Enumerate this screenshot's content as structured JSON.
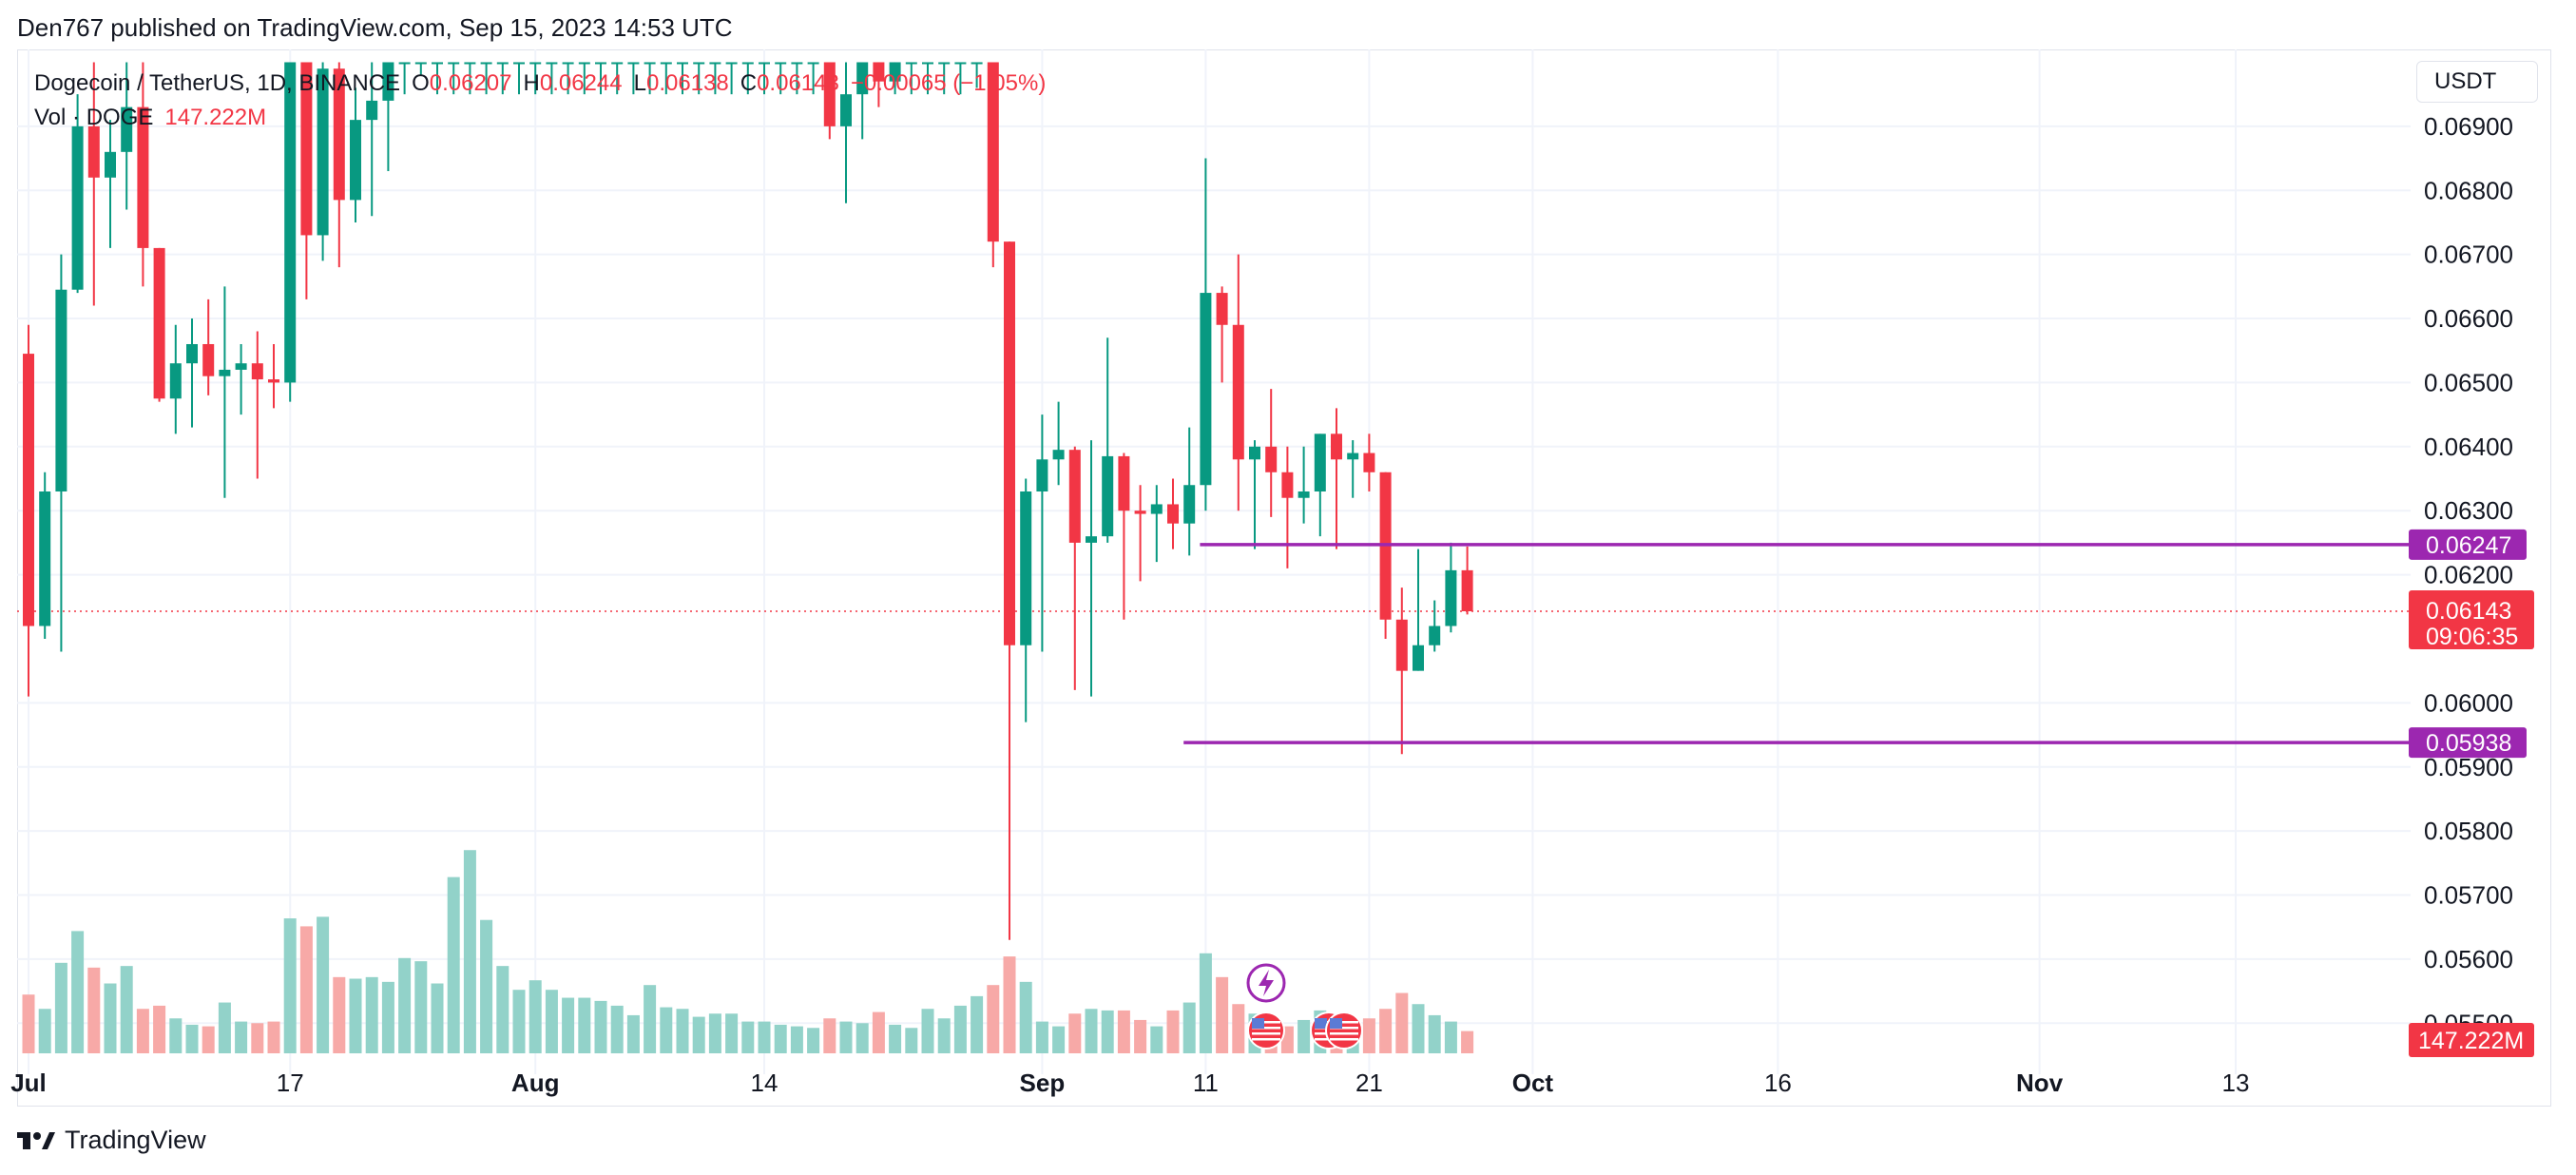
{
  "header": {
    "published_by": "Den767 published on TradingView.com, Sep 15, 2023 14:53 UTC"
  },
  "legend": {
    "symbol": "Dogecoin / TetherUS, 1D, BINANCE",
    "o_label": "O",
    "o_value": "0.06207",
    "h_label": "H",
    "h_value": "0.06244",
    "l_label": "L",
    "l_value": "0.06138",
    "c_label": "C",
    "c_value": "0.06143",
    "change": "−0.00065 (−1.05%)",
    "vol_label": "Vol · DOGE",
    "vol_value": "147.222M"
  },
  "price_axis": {
    "currency": "USDT",
    "ticks": [
      "0.06900",
      "0.06800",
      "0.06700",
      "0.06600",
      "0.06500",
      "0.06400",
      "0.06300",
      "0.06200",
      "0.06000",
      "0.05900",
      "0.05800",
      "0.05700",
      "0.05600",
      "0.05500"
    ],
    "tick_values": [
      0.069,
      0.068,
      0.067,
      0.066,
      0.065,
      0.064,
      0.063,
      0.062,
      0.06,
      0.059,
      0.058,
      0.057,
      0.056,
      0.055
    ],
    "current_price": "0.06143",
    "current_value": 0.06143,
    "countdown": "09:06:35",
    "volume_label": "147.222M"
  },
  "time_axis": {
    "labels": [
      "Jul",
      "17",
      "Aug",
      "14",
      "Sep",
      "11",
      "21",
      "Oct",
      "16",
      "Nov",
      "13"
    ],
    "label_day_index": [
      0,
      16,
      31,
      45,
      62,
      72,
      82,
      92,
      107,
      123,
      135
    ]
  },
  "horizontal_lines": [
    {
      "label": "0.06247",
      "value": 0.06247,
      "start_day": 72
    },
    {
      "label": "0.05938",
      "value": 0.05938,
      "start_day": 71
    }
  ],
  "colors": {
    "up": "#089981",
    "down": "#f23645",
    "vol_up": "#92d2c9",
    "vol_down": "#f7a9a7",
    "level": "#9c27b0",
    "grid": "#f0f3fa"
  },
  "chart_data": {
    "type": "candlestick",
    "symbol": "Dogecoin / TetherUS",
    "interval": "1D",
    "exchange": "BINANCE",
    "x_start": "2023-06-30",
    "ylim": [
      0.0545,
      0.0702
    ],
    "ohlc": [
      {
        "o": 0.06545,
        "h": 0.0659,
        "l": 0.0601,
        "c": 0.0612,
        "v": 37
      },
      {
        "o": 0.0612,
        "h": 0.0636,
        "l": 0.061,
        "c": 0.0633,
        "v": 28
      },
      {
        "o": 0.0633,
        "h": 0.067,
        "l": 0.0608,
        "c": 0.06645,
        "v": 57
      },
      {
        "o": 0.06645,
        "h": 0.0695,
        "l": 0.0664,
        "c": 0.069,
        "v": 77
      },
      {
        "o": 0.069,
        "h": 0.07,
        "l": 0.0662,
        "c": 0.0682,
        "v": 54
      },
      {
        "o": 0.0682,
        "h": 0.0691,
        "l": 0.0671,
        "c": 0.0686,
        "v": 44
      },
      {
        "o": 0.0686,
        "h": 0.07,
        "l": 0.0677,
        "c": 0.0693,
        "v": 55
      },
      {
        "o": 0.0693,
        "h": 0.07,
        "l": 0.0665,
        "c": 0.0671,
        "v": 28
      },
      {
        "o": 0.0671,
        "h": 0.0671,
        "l": 0.0647,
        "c": 0.06475,
        "v": 30
      },
      {
        "o": 0.06475,
        "h": 0.0659,
        "l": 0.0642,
        "c": 0.0653,
        "v": 22
      },
      {
        "o": 0.0653,
        "h": 0.066,
        "l": 0.0643,
        "c": 0.0656,
        "v": 18
      },
      {
        "o": 0.0656,
        "h": 0.0663,
        "l": 0.0648,
        "c": 0.0651,
        "v": 17
      },
      {
        "o": 0.0651,
        "h": 0.0665,
        "l": 0.0632,
        "c": 0.0652,
        "v": 32
      },
      {
        "o": 0.0652,
        "h": 0.0656,
        "l": 0.0645,
        "c": 0.0653,
        "v": 20
      },
      {
        "o": 0.0653,
        "h": 0.0658,
        "l": 0.0635,
        "c": 0.06505,
        "v": 19
      },
      {
        "o": 0.06505,
        "h": 0.0656,
        "l": 0.0646,
        "c": 0.065,
        "v": 20
      },
      {
        "o": 0.065,
        "h": 0.07,
        "l": 0.0647,
        "c": 0.07,
        "v": 85
      },
      {
        "o": 0.07,
        "h": 0.07,
        "l": 0.0663,
        "c": 0.0673,
        "v": 80
      },
      {
        "o": 0.0673,
        "h": 0.07,
        "l": 0.0669,
        "c": 0.0699,
        "v": 86
      },
      {
        "o": 0.0699,
        "h": 0.07,
        "l": 0.0668,
        "c": 0.06785,
        "v": 48
      },
      {
        "o": 0.06785,
        "h": 0.0696,
        "l": 0.0675,
        "c": 0.0691,
        "v": 47
      },
      {
        "o": 0.0691,
        "h": 0.07,
        "l": 0.0676,
        "c": 0.0694,
        "v": 48
      },
      {
        "o": 0.0694,
        "h": 0.07,
        "l": 0.0683,
        "c": 0.07,
        "v": 45
      },
      {
        "o": 0.07,
        "h": 0.07,
        "l": 0.0695,
        "c": 0.07,
        "v": 60
      },
      {
        "o": 0.07,
        "h": 0.07,
        "l": 0.0698,
        "c": 0.07,
        "v": 58
      },
      {
        "o": 0.07,
        "h": 0.07,
        "l": 0.0695,
        "c": 0.07,
        "v": 44
      },
      {
        "o": 0.07,
        "h": 0.07,
        "l": 0.0695,
        "c": 0.07,
        "v": 111
      },
      {
        "o": 0.07,
        "h": 0.07,
        "l": 0.0695,
        "c": 0.07,
        "v": 128
      },
      {
        "o": 0.07,
        "h": 0.07,
        "l": 0.0695,
        "c": 0.07,
        "v": 84
      },
      {
        "o": 0.07,
        "h": 0.07,
        "l": 0.0695,
        "c": 0.07,
        "v": 55
      },
      {
        "o": 0.07,
        "h": 0.07,
        "l": 0.0695,
        "c": 0.07,
        "v": 40
      },
      {
        "o": 0.07,
        "h": 0.07,
        "l": 0.0695,
        "c": 0.07,
        "v": 46
      },
      {
        "o": 0.07,
        "h": 0.07,
        "l": 0.0695,
        "c": 0.07,
        "v": 40
      },
      {
        "o": 0.07,
        "h": 0.07,
        "l": 0.0695,
        "c": 0.07,
        "v": 35
      },
      {
        "o": 0.07,
        "h": 0.07,
        "l": 0.0695,
        "c": 0.07,
        "v": 35
      },
      {
        "o": 0.07,
        "h": 0.07,
        "l": 0.0695,
        "c": 0.07,
        "v": 33
      },
      {
        "o": 0.07,
        "h": 0.07,
        "l": 0.0695,
        "c": 0.07,
        "v": 30
      },
      {
        "o": 0.07,
        "h": 0.07,
        "l": 0.0695,
        "c": 0.07,
        "v": 24
      },
      {
        "o": 0.07,
        "h": 0.07,
        "l": 0.0695,
        "c": 0.07,
        "v": 43
      },
      {
        "o": 0.07,
        "h": 0.07,
        "l": 0.0695,
        "c": 0.07,
        "v": 29
      },
      {
        "o": 0.07,
        "h": 0.07,
        "l": 0.0695,
        "c": 0.07,
        "v": 28
      },
      {
        "o": 0.07,
        "h": 0.07,
        "l": 0.0695,
        "c": 0.07,
        "v": 23
      },
      {
        "o": 0.07,
        "h": 0.07,
        "l": 0.0695,
        "c": 0.07,
        "v": 25
      },
      {
        "o": 0.07,
        "h": 0.07,
        "l": 0.0695,
        "c": 0.07,
        "v": 25
      },
      {
        "o": 0.07,
        "h": 0.07,
        "l": 0.0695,
        "c": 0.07,
        "v": 20
      },
      {
        "o": 0.07,
        "h": 0.07,
        "l": 0.0695,
        "c": 0.07,
        "v": 20
      },
      {
        "o": 0.07,
        "h": 0.07,
        "l": 0.0695,
        "c": 0.07,
        "v": 18
      },
      {
        "o": 0.07,
        "h": 0.07,
        "l": 0.0695,
        "c": 0.07,
        "v": 17
      },
      {
        "o": 0.07,
        "h": 0.07,
        "l": 0.0695,
        "c": 0.07,
        "v": 16
      },
      {
        "o": 0.07,
        "h": 0.07,
        "l": 0.0688,
        "c": 0.069,
        "v": 22
      },
      {
        "o": 0.069,
        "h": 0.07,
        "l": 0.0678,
        "c": 0.0695,
        "v": 20
      },
      {
        "o": 0.0695,
        "h": 0.07,
        "l": 0.0688,
        "c": 0.07,
        "v": 19
      },
      {
        "o": 0.07,
        "h": 0.07,
        "l": 0.0693,
        "c": 0.0697,
        "v": 26
      },
      {
        "o": 0.0697,
        "h": 0.07,
        "l": 0.0695,
        "c": 0.07,
        "v": 18
      },
      {
        "o": 0.07,
        "h": 0.07,
        "l": 0.0695,
        "c": 0.07,
        "v": 16
      },
      {
        "o": 0.07,
        "h": 0.07,
        "l": 0.0695,
        "c": 0.07,
        "v": 28
      },
      {
        "o": 0.07,
        "h": 0.07,
        "l": 0.0695,
        "c": 0.07,
        "v": 22
      },
      {
        "o": 0.07,
        "h": 0.07,
        "l": 0.0695,
        "c": 0.07,
        "v": 30
      },
      {
        "o": 0.07,
        "h": 0.07,
        "l": 0.0696,
        "c": 0.07,
        "v": 36
      },
      {
        "o": 0.07,
        "h": 0.07,
        "l": 0.0668,
        "c": 0.0672,
        "v": 43
      },
      {
        "o": 0.0672,
        "h": 0.0672,
        "l": 0.0563,
        "c": 0.0609,
        "v": 61
      },
      {
        "o": 0.0609,
        "h": 0.0635,
        "l": 0.0597,
        "c": 0.0633,
        "v": 45
      },
      {
        "o": 0.0633,
        "h": 0.0645,
        "l": 0.0608,
        "c": 0.0638,
        "v": 20
      },
      {
        "o": 0.0638,
        "h": 0.0647,
        "l": 0.0634,
        "c": 0.06395,
        "v": 17
      },
      {
        "o": 0.06395,
        "h": 0.064,
        "l": 0.0602,
        "c": 0.0625,
        "v": 25
      },
      {
        "o": 0.0625,
        "h": 0.0641,
        "l": 0.0601,
        "c": 0.0626,
        "v": 28
      },
      {
        "o": 0.0626,
        "h": 0.0657,
        "l": 0.0625,
        "c": 0.06385,
        "v": 27
      },
      {
        "o": 0.06385,
        "h": 0.0639,
        "l": 0.0613,
        "c": 0.063,
        "v": 27
      },
      {
        "o": 0.063,
        "h": 0.0634,
        "l": 0.0619,
        "c": 0.06295,
        "v": 21
      },
      {
        "o": 0.06295,
        "h": 0.0634,
        "l": 0.0622,
        "c": 0.0631,
        "v": 17
      },
      {
        "o": 0.0631,
        "h": 0.0635,
        "l": 0.0624,
        "c": 0.0628,
        "v": 27
      },
      {
        "o": 0.0628,
        "h": 0.0643,
        "l": 0.0623,
        "c": 0.0634,
        "v": 32
      },
      {
        "o": 0.0634,
        "h": 0.0685,
        "l": 0.063,
        "c": 0.0664,
        "v": 63
      },
      {
        "o": 0.0664,
        "h": 0.0665,
        "l": 0.065,
        "c": 0.0659,
        "v": 48
      }
    ],
    "ohlc_tail": [
      {
        "o": 0.0659,
        "h": 0.067,
        "l": 0.063,
        "c": 0.0638,
        "v": 31
      },
      {
        "o": 0.0638,
        "h": 0.0641,
        "l": 0.0624,
        "c": 0.064,
        "v": 25
      },
      {
        "o": 0.064,
        "h": 0.0649,
        "l": 0.0629,
        "c": 0.0636,
        "v": 21
      },
      {
        "o": 0.0636,
        "h": 0.064,
        "l": 0.0621,
        "c": 0.0632,
        "v": 17
      },
      {
        "o": 0.0632,
        "h": 0.064,
        "l": 0.0628,
        "c": 0.0633,
        "v": 21
      },
      {
        "o": 0.0633,
        "h": 0.0642,
        "l": 0.0626,
        "c": 0.0642,
        "v": 27
      },
      {
        "o": 0.0642,
        "h": 0.0646,
        "l": 0.0624,
        "c": 0.0638,
        "v": 23
      },
      {
        "o": 0.0638,
        "h": 0.0641,
        "l": 0.0632,
        "c": 0.0639,
        "v": 19
      },
      {
        "o": 0.0639,
        "h": 0.0642,
        "l": 0.0633,
        "c": 0.0636,
        "v": 22
      },
      {
        "o": 0.0636,
        "h": 0.0636,
        "l": 0.061,
        "c": 0.0613,
        "v": 28
      },
      {
        "o": 0.0613,
        "h": 0.0618,
        "l": 0.0592,
        "c": 0.0605,
        "v": 38
      },
      {
        "o": 0.0605,
        "h": 0.0624,
        "l": 0.0605,
        "c": 0.0609,
        "v": 31
      },
      {
        "o": 0.0609,
        "h": 0.0616,
        "l": 0.0608,
        "c": 0.0612,
        "v": 24
      },
      {
        "o": 0.0612,
        "h": 0.0625,
        "l": 0.0611,
        "c": 0.06207,
        "v": 20
      },
      {
        "o": 0.06207,
        "h": 0.06244,
        "l": 0.06138,
        "c": 0.06143,
        "v": 14
      }
    ]
  }
}
